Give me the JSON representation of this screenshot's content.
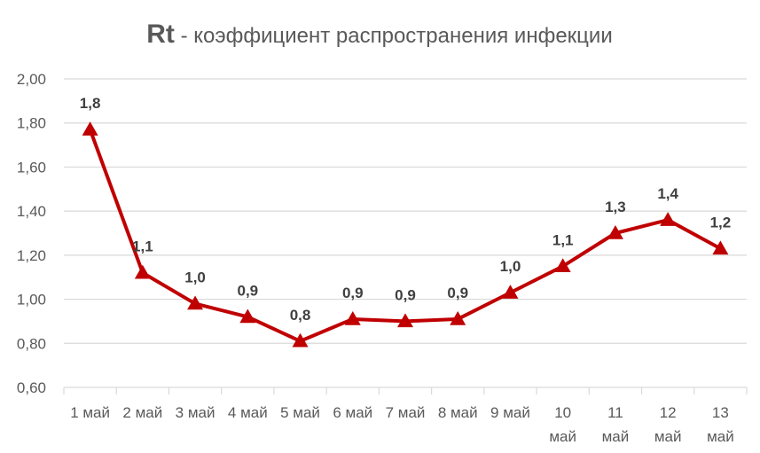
{
  "chart_data": {
    "type": "line",
    "title_main": "Rt",
    "title_rest": " - коэффициент распространения инфекции",
    "xlabel": "",
    "ylabel": "",
    "ylim": [
      0.6,
      2.0
    ],
    "yticks": [
      "0,60",
      "0,80",
      "1,00",
      "1,20",
      "1,40",
      "1,60",
      "1,80",
      "2,00"
    ],
    "grid": true,
    "legend": "none",
    "categories": [
      [
        "1 май"
      ],
      [
        "2 май"
      ],
      [
        "3 май"
      ],
      [
        "4 май"
      ],
      [
        "5 май"
      ],
      [
        "6 май"
      ],
      [
        "7 май"
      ],
      [
        "8 май"
      ],
      [
        "9 май"
      ],
      [
        "10",
        "май"
      ],
      [
        "11",
        "май"
      ],
      [
        "12",
        "май"
      ],
      [
        "13",
        "май"
      ]
    ],
    "series": [
      {
        "values": [
          1.77,
          1.12,
          0.98,
          0.92,
          0.81,
          0.91,
          0.9,
          0.91,
          1.03,
          1.15,
          1.3,
          1.36,
          1.23
        ],
        "data_labels": [
          "1,8",
          "1,1",
          "1,0",
          "0,9",
          "0,8",
          "0,9",
          "0,9",
          "0,9",
          "1,0",
          "1,1",
          "1,3",
          "1,4",
          "1,2"
        ],
        "color": "#c00000",
        "marker": "triangle"
      }
    ]
  }
}
